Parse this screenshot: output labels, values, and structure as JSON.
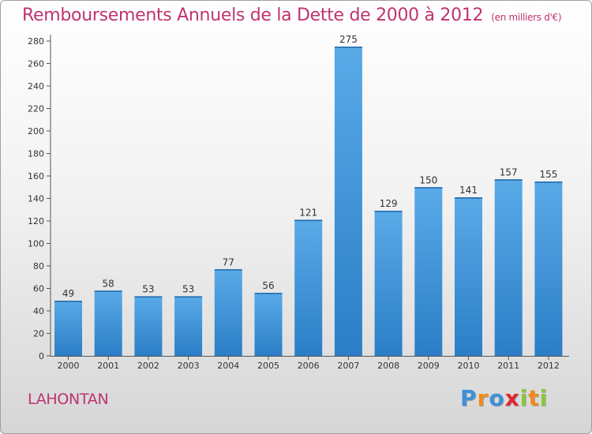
{
  "chart_data": {
    "type": "bar",
    "title": "Remboursements Annuels de la Dette de 2000 à 2012",
    "unit_note": "(en milliers d'€)",
    "categories": [
      "2000",
      "2001",
      "2002",
      "2003",
      "2004",
      "2005",
      "2006",
      "2007",
      "2008",
      "2009",
      "2010",
      "2011",
      "2012"
    ],
    "values": [
      49,
      58,
      53,
      53,
      77,
      56,
      121,
      275,
      129,
      150,
      141,
      157,
      155
    ],
    "ylim": [
      0,
      280
    ],
    "yticks": [
      0,
      20,
      40,
      60,
      80,
      100,
      120,
      140,
      160,
      180,
      200,
      220,
      240,
      260,
      280
    ],
    "grid": false,
    "bar_color": "#4f9fe0",
    "bar_color_dark": "#2f80c8"
  },
  "place_name": "LAHONTAN",
  "logo": {
    "letters": [
      "P",
      "r",
      "o",
      "x",
      "i",
      "t",
      "i"
    ],
    "colors": [
      "#3e8fd6",
      "#f08a1c",
      "#3e8fd6",
      "#e2262f",
      "#8cc63f",
      "#f08a1c",
      "#8cc63f"
    ]
  },
  "colors": {
    "title": "#c0336f",
    "axis": "#333333"
  }
}
